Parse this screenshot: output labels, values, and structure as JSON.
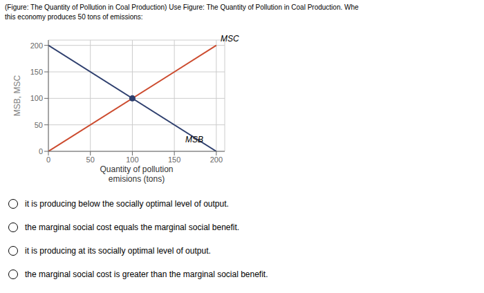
{
  "chart_data": {
    "type": "line",
    "title": "(Figure: The Quantity of Pollution in Coal Production) Use Figure: The Quantity of Pollution in Coal Production. Whe",
    "subtitle": "this economy produces 50 tons of emissions:",
    "xlabel": "Quantity of pollution\nemisions (tons)",
    "ylabel": "MSB, MSC",
    "xlim": [
      0,
      210
    ],
    "ylim": [
      0,
      210
    ],
    "xticks": [
      0,
      50,
      100,
      150,
      200
    ],
    "yticks": [
      0,
      50,
      100,
      150,
      200
    ],
    "grid": true,
    "series": [
      {
        "color": "#2e3f6e",
        "x": [
          0,
          200
        ],
        "values": [
          200,
          0
        ]
      },
      {
        "color": "#cc4b2e",
        "x": [
          0,
          200
        ],
        "values": [
          0,
          200
        ]
      },
      {
        "type": "scatter",
        "marker": "circle",
        "color": "#2e3f6e",
        "x": [
          100
        ],
        "values": [
          100
        ]
      }
    ],
    "annotations": [
      {
        "text": "MSC",
        "x": 205,
        "y": 205
      },
      {
        "text": "MSB",
        "x": 163,
        "y": 15
      }
    ],
    "answer_options": [
      "it is producing below the socially optimal level of output.",
      "the marginal social cost equals the marginal social benefit.",
      "it is producing at its socially optimal level of output.",
      "the marginal social cost is greater than the marginal social benefit."
    ]
  }
}
